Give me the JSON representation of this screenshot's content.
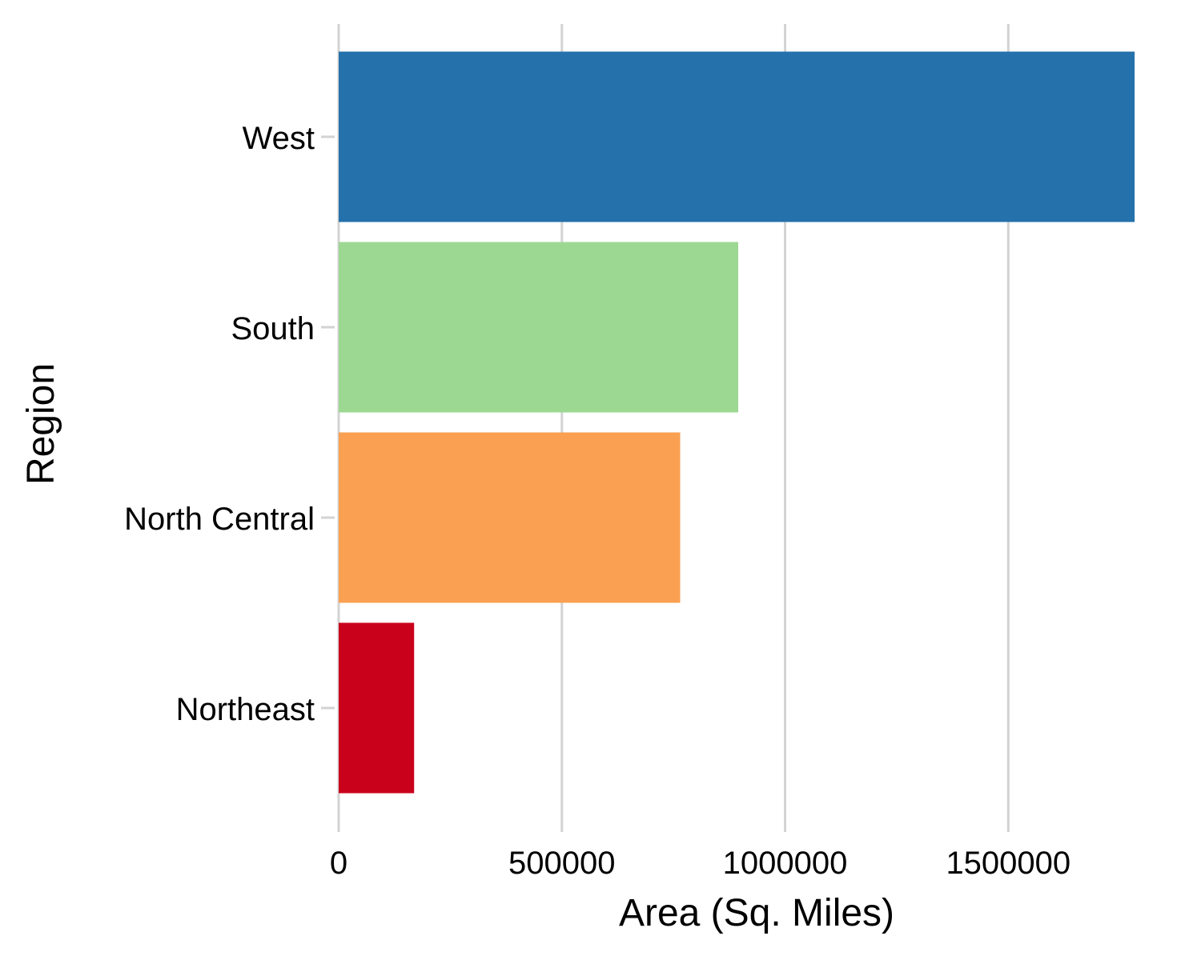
{
  "chart_data": {
    "type": "bar",
    "orientation": "horizontal",
    "title": "",
    "xlabel": "Area (Sq. Miles)",
    "ylabel": "Region",
    "categories": [
      "West",
      "South",
      "North Central",
      "Northeast"
    ],
    "values": [
      1783000,
      895000,
      765000,
      169000
    ],
    "colors": [
      "#2471ab",
      "#9dd893",
      "#faa052",
      "#ca011b"
    ],
    "xlim": [
      0,
      1790000
    ],
    "xticks": [
      0,
      500000,
      1000000,
      1500000
    ],
    "xtick_labels": [
      "0",
      "500000",
      "1000000",
      "1500000"
    ],
    "grid": "vertical major gridlines",
    "legend": "none"
  }
}
